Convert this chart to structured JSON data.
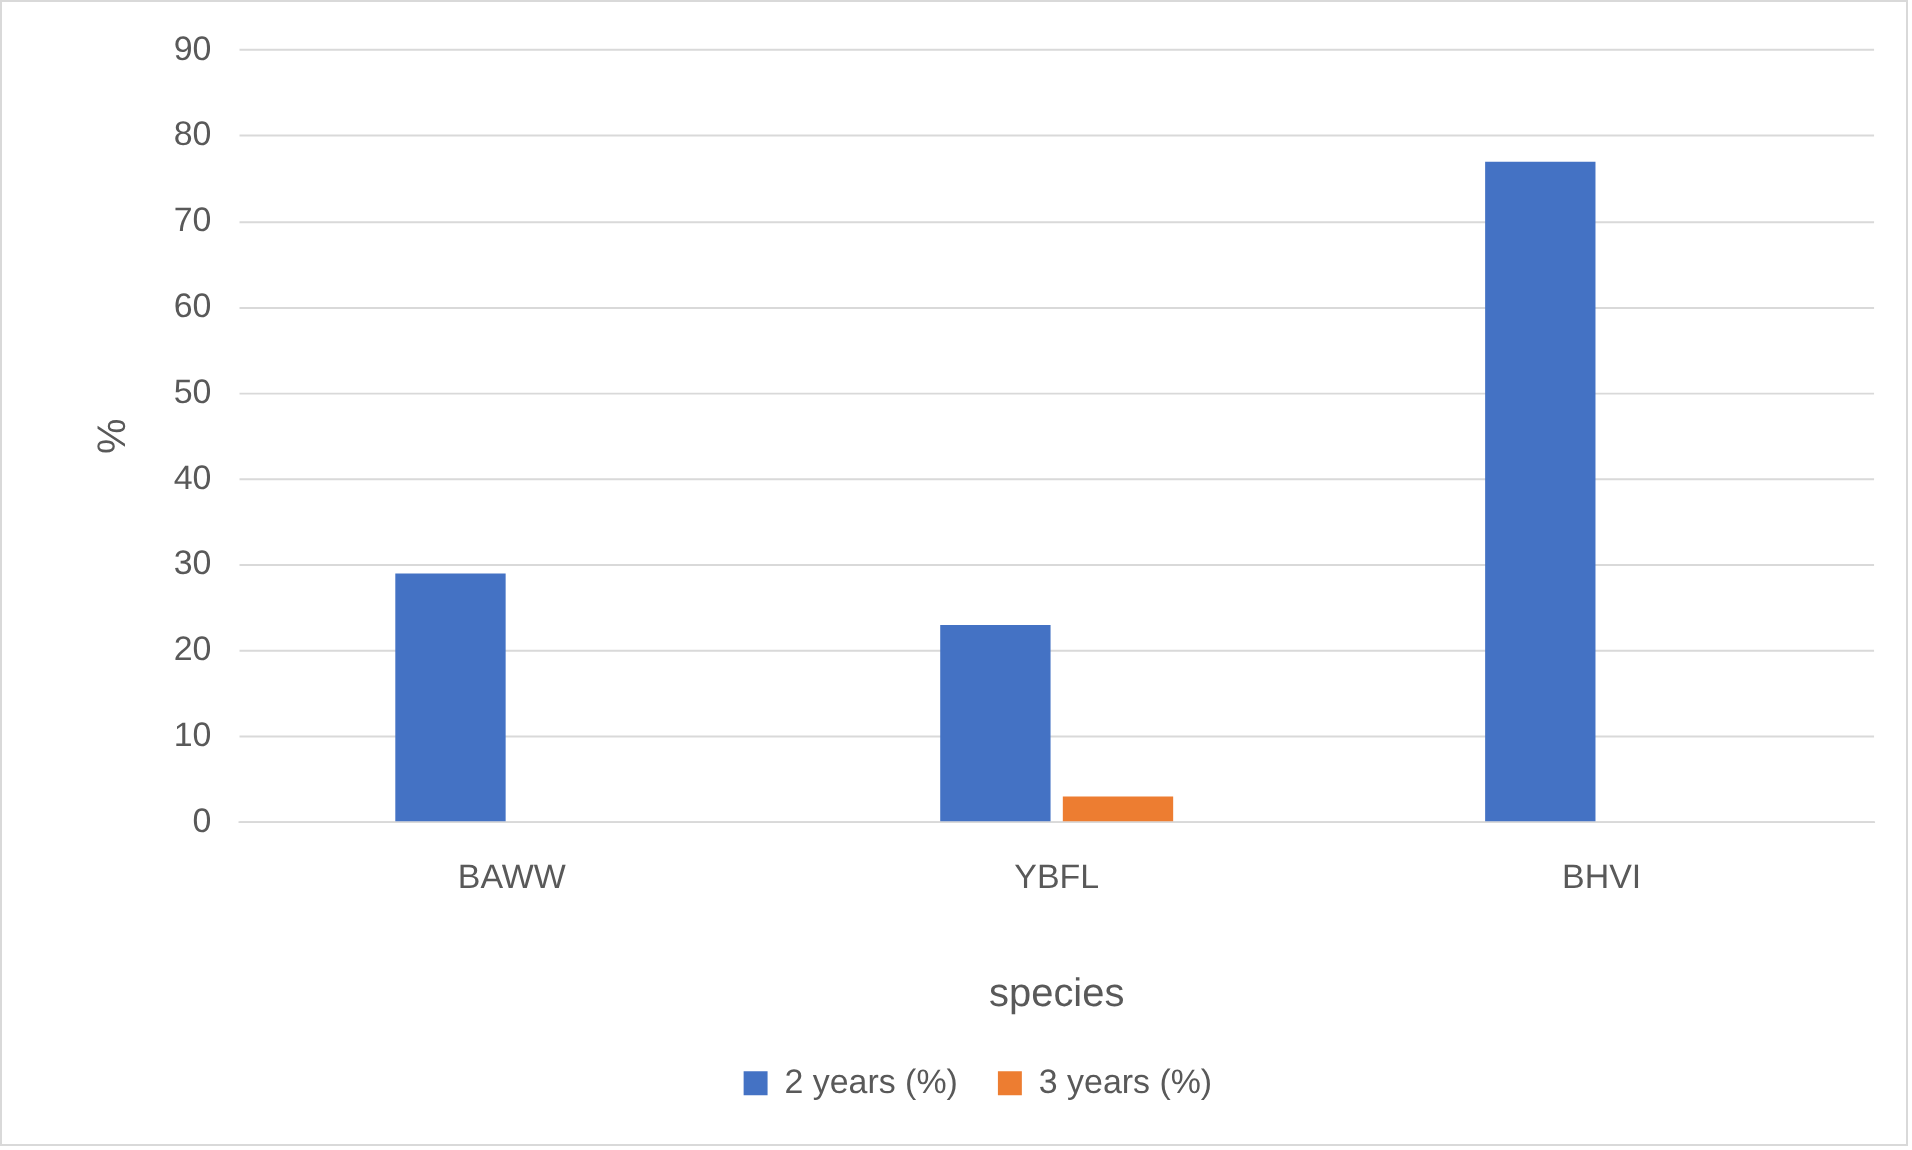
{
  "chart_data": {
    "type": "bar",
    "xlabel": "species",
    "ylabel": "%",
    "categories": [
      "BAWW",
      "YBFL",
      "BHVI"
    ],
    "series": [
      {
        "name": "2 years (%)",
        "color": "#4472c4",
        "values": [
          29,
          23,
          77
        ]
      },
      {
        "name": "3 years (%)",
        "color": "#ed7d31",
        "values": [
          0,
          3,
          0
        ]
      }
    ],
    "ylim": [
      0,
      90
    ],
    "yticks": [
      0,
      10,
      20,
      30,
      40,
      50,
      60,
      70,
      80,
      90
    ],
    "grid": "y",
    "legend": "bottom"
  }
}
